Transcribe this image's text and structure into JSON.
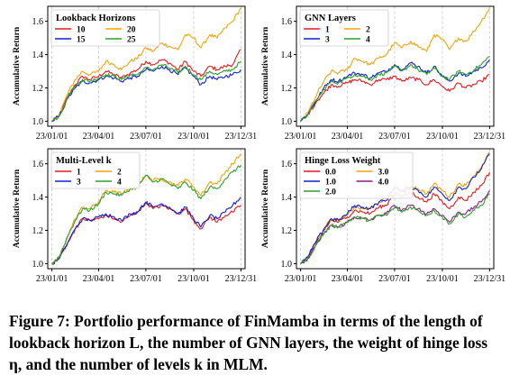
{
  "caption": {
    "label": "Figure 7:",
    "text": "Portfolio performance of FinMamba in terms of the length of lookback horizon L, the number of GNN layers, the weight of hinge loss η, and the number of levels k in MLM."
  },
  "chart_data": [
    {
      "type": "line",
      "ylabel": "Accumulative Return",
      "legend_title": "Lookback Horizons",
      "legend_position": "top-left",
      "legend_columns": 2,
      "x_ticks": [
        "23/01/01",
        "23/04/01",
        "23/07/01",
        "23/10/01",
        "23/12/31"
      ],
      "y_ticks": [
        1.0,
        1.2,
        1.4,
        1.6
      ],
      "ylim": [
        0.97,
        1.69
      ],
      "grid": "vertical dashed at x ticks",
      "x": [
        "23/01/01",
        "23/01/15",
        "23/02/01",
        "23/02/15",
        "23/03/01",
        "23/03/15",
        "23/04/01",
        "23/04/15",
        "23/05/01",
        "23/05/15",
        "23/06/01",
        "23/06/15",
        "23/07/01",
        "23/07/15",
        "23/08/01",
        "23/08/15",
        "23/09/01",
        "23/09/15",
        "23/10/01",
        "23/10/15",
        "23/11/01",
        "23/11/15",
        "23/12/01",
        "23/12/15",
        "23/12/31"
      ],
      "series": [
        {
          "name": "10",
          "color": "#e8191c",
          "values": [
            1.0,
            1.03,
            1.15,
            1.22,
            1.27,
            1.25,
            1.27,
            1.3,
            1.28,
            1.26,
            1.29,
            1.31,
            1.36,
            1.34,
            1.37,
            1.35,
            1.31,
            1.36,
            1.3,
            1.27,
            1.33,
            1.31,
            1.33,
            1.34,
            1.43
          ]
        },
        {
          "name": "20",
          "color": "#f2a20c",
          "values": [
            1.0,
            1.04,
            1.17,
            1.25,
            1.3,
            1.28,
            1.3,
            1.36,
            1.34,
            1.31,
            1.36,
            1.38,
            1.44,
            1.42,
            1.47,
            1.45,
            1.43,
            1.52,
            1.5,
            1.44,
            1.52,
            1.5,
            1.56,
            1.6,
            1.68
          ]
        },
        {
          "name": "15",
          "color": "#1020d0",
          "values": [
            1.0,
            1.03,
            1.14,
            1.2,
            1.24,
            1.23,
            1.25,
            1.27,
            1.26,
            1.24,
            1.26,
            1.27,
            1.31,
            1.3,
            1.33,
            1.31,
            1.28,
            1.32,
            1.27,
            1.22,
            1.27,
            1.25,
            1.27,
            1.28,
            1.31
          ]
        },
        {
          "name": "25",
          "color": "#2ea02c",
          "values": [
            1.0,
            1.03,
            1.15,
            1.21,
            1.25,
            1.24,
            1.26,
            1.28,
            1.27,
            1.25,
            1.28,
            1.28,
            1.32,
            1.31,
            1.34,
            1.32,
            1.29,
            1.33,
            1.28,
            1.25,
            1.3,
            1.28,
            1.3,
            1.31,
            1.36
          ]
        }
      ]
    },
    {
      "type": "line",
      "ylabel": "Accumulative Return",
      "legend_title": "GNN Layers",
      "legend_position": "top-left",
      "legend_columns": 2,
      "x_ticks": [
        "23/01/01",
        "23/04/01",
        "23/07/01",
        "23/10/01",
        "23/12/31"
      ],
      "y_ticks": [
        1.0,
        1.2,
        1.4,
        1.6
      ],
      "ylim": [
        0.97,
        1.69
      ],
      "grid": "vertical dashed at x ticks",
      "x": [
        "23/01/01",
        "23/01/15",
        "23/02/01",
        "23/02/15",
        "23/03/01",
        "23/03/15",
        "23/04/01",
        "23/04/15",
        "23/05/01",
        "23/05/15",
        "23/06/01",
        "23/06/15",
        "23/07/01",
        "23/07/15",
        "23/08/01",
        "23/08/15",
        "23/09/01",
        "23/09/15",
        "23/10/01",
        "23/10/15",
        "23/11/01",
        "23/11/15",
        "23/12/01",
        "23/12/15",
        "23/12/31"
      ],
      "series": [
        {
          "name": "1",
          "color": "#e8191c",
          "values": [
            1.0,
            1.04,
            1.12,
            1.17,
            1.22,
            1.21,
            1.23,
            1.25,
            1.24,
            1.22,
            1.25,
            1.25,
            1.27,
            1.24,
            1.26,
            1.25,
            1.22,
            1.25,
            1.21,
            1.18,
            1.23,
            1.2,
            1.22,
            1.24,
            1.28
          ]
        },
        {
          "name": "2",
          "color": "#f2a20c",
          "values": [
            1.0,
            1.05,
            1.16,
            1.24,
            1.3,
            1.29,
            1.31,
            1.38,
            1.36,
            1.34,
            1.38,
            1.4,
            1.47,
            1.44,
            1.48,
            1.45,
            1.42,
            1.52,
            1.49,
            1.43,
            1.5,
            1.48,
            1.54,
            1.6,
            1.68
          ]
        },
        {
          "name": "3",
          "color": "#1020d0",
          "values": [
            1.0,
            1.04,
            1.13,
            1.2,
            1.25,
            1.24,
            1.27,
            1.29,
            1.28,
            1.26,
            1.29,
            1.3,
            1.34,
            1.31,
            1.35,
            1.33,
            1.29,
            1.33,
            1.27,
            1.24,
            1.29,
            1.27,
            1.3,
            1.32,
            1.37
          ]
        },
        {
          "name": "4",
          "color": "#2ea02c",
          "values": [
            1.0,
            1.04,
            1.13,
            1.19,
            1.24,
            1.23,
            1.26,
            1.28,
            1.27,
            1.25,
            1.28,
            1.29,
            1.33,
            1.3,
            1.34,
            1.31,
            1.28,
            1.32,
            1.27,
            1.25,
            1.3,
            1.28,
            1.31,
            1.34,
            1.39
          ]
        }
      ]
    },
    {
      "type": "line",
      "ylabel": "Accumulative Return",
      "legend_title": "Multi-Level k",
      "legend_position": "top-left",
      "legend_columns": 2,
      "x_ticks": [
        "23/01/01",
        "23/04/01",
        "23/07/01",
        "23/10/01",
        "23/12/31"
      ],
      "y_ticks": [
        1.0,
        1.2,
        1.4,
        1.6
      ],
      "ylim": [
        0.97,
        1.69
      ],
      "grid": "vertical dashed at x ticks",
      "x": [
        "23/01/01",
        "23/01/15",
        "23/02/01",
        "23/02/15",
        "23/03/01",
        "23/03/15",
        "23/04/01",
        "23/04/15",
        "23/05/01",
        "23/05/15",
        "23/06/01",
        "23/06/15",
        "23/07/01",
        "23/07/15",
        "23/08/01",
        "23/08/15",
        "23/09/01",
        "23/09/15",
        "23/10/01",
        "23/10/15",
        "23/11/01",
        "23/11/15",
        "23/12/01",
        "23/12/15",
        "23/12/31"
      ],
      "series": [
        {
          "name": "1",
          "color": "#e8191c",
          "values": [
            1.0,
            1.03,
            1.13,
            1.21,
            1.27,
            1.26,
            1.27,
            1.29,
            1.27,
            1.25,
            1.29,
            1.31,
            1.37,
            1.33,
            1.35,
            1.33,
            1.3,
            1.33,
            1.26,
            1.21,
            1.28,
            1.25,
            1.29,
            1.31,
            1.35
          ]
        },
        {
          "name": "2",
          "color": "#f2a20c",
          "values": [
            1.0,
            1.04,
            1.17,
            1.27,
            1.34,
            1.33,
            1.37,
            1.44,
            1.43,
            1.42,
            1.45,
            1.47,
            1.53,
            1.5,
            1.51,
            1.49,
            1.47,
            1.51,
            1.46,
            1.41,
            1.49,
            1.48,
            1.55,
            1.6,
            1.66
          ]
        },
        {
          "name": "3",
          "color": "#1020d0",
          "values": [
            1.0,
            1.03,
            1.13,
            1.21,
            1.27,
            1.26,
            1.28,
            1.3,
            1.28,
            1.26,
            1.3,
            1.31,
            1.37,
            1.34,
            1.36,
            1.34,
            1.3,
            1.34,
            1.27,
            1.22,
            1.29,
            1.27,
            1.31,
            1.35,
            1.4
          ]
        },
        {
          "name": "4",
          "color": "#2ea02c",
          "values": [
            1.0,
            1.04,
            1.17,
            1.26,
            1.33,
            1.32,
            1.36,
            1.43,
            1.42,
            1.41,
            1.45,
            1.46,
            1.53,
            1.49,
            1.51,
            1.48,
            1.45,
            1.49,
            1.44,
            1.39,
            1.46,
            1.45,
            1.51,
            1.55,
            1.59
          ]
        }
      ]
    },
    {
      "type": "line",
      "ylabel": "Accumulative Return",
      "legend_title": "Hinge Loss Weight",
      "legend_position": "top-left",
      "legend_columns": 2,
      "x_ticks": [
        "23/01/01",
        "23/04/01",
        "23/07/01",
        "23/10/01",
        "23/12/31"
      ],
      "y_ticks": [
        1.0,
        1.2,
        1.4,
        1.6
      ],
      "ylim": [
        0.97,
        1.69
      ],
      "grid": "vertical dashed at x ticks",
      "x": [
        "23/01/01",
        "23/01/15",
        "23/02/01",
        "23/02/15",
        "23/03/01",
        "23/03/15",
        "23/04/01",
        "23/04/15",
        "23/05/01",
        "23/05/15",
        "23/06/01",
        "23/06/15",
        "23/07/01",
        "23/07/15",
        "23/08/01",
        "23/08/15",
        "23/09/01",
        "23/09/15",
        "23/10/01",
        "23/10/15",
        "23/11/01",
        "23/11/15",
        "23/12/01",
        "23/12/15",
        "23/12/31"
      ],
      "series": [
        {
          "name": "0.0",
          "color": "#e8191c",
          "values": [
            1.0,
            1.04,
            1.13,
            1.2,
            1.26,
            1.25,
            1.28,
            1.32,
            1.31,
            1.3,
            1.34,
            1.35,
            1.43,
            1.4,
            1.43,
            1.4,
            1.37,
            1.42,
            1.37,
            1.33,
            1.4,
            1.38,
            1.43,
            1.47,
            1.55
          ]
        },
        {
          "name": "3.0",
          "color": "#f2a20c",
          "values": [
            1.0,
            1.04,
            1.14,
            1.21,
            1.27,
            1.26,
            1.29,
            1.34,
            1.33,
            1.33,
            1.37,
            1.39,
            1.47,
            1.44,
            1.47,
            1.45,
            1.42,
            1.48,
            1.44,
            1.4,
            1.48,
            1.47,
            1.53,
            1.58,
            1.67
          ]
        },
        {
          "name": "1.0",
          "color": "#1020d0",
          "values": [
            1.0,
            1.04,
            1.14,
            1.21,
            1.27,
            1.26,
            1.3,
            1.35,
            1.34,
            1.33,
            1.37,
            1.38,
            1.46,
            1.43,
            1.46,
            1.44,
            1.4,
            1.46,
            1.42,
            1.38,
            1.46,
            1.45,
            1.52,
            1.57,
            1.66
          ]
        },
        {
          "name": "4.0",
          "color": "#8a1a8c",
          "values": [
            1.0,
            1.03,
            1.12,
            1.18,
            1.23,
            1.22,
            1.25,
            1.28,
            1.27,
            1.26,
            1.29,
            1.3,
            1.35,
            1.32,
            1.35,
            1.33,
            1.3,
            1.33,
            1.29,
            1.25,
            1.31,
            1.3,
            1.34,
            1.37,
            1.44
          ]
        },
        {
          "name": "2.0",
          "color": "#2ea02c",
          "values": [
            1.0,
            1.03,
            1.12,
            1.18,
            1.23,
            1.22,
            1.25,
            1.28,
            1.27,
            1.26,
            1.29,
            1.29,
            1.34,
            1.31,
            1.34,
            1.32,
            1.29,
            1.32,
            1.28,
            1.24,
            1.3,
            1.28,
            1.32,
            1.35,
            1.42
          ]
        }
      ]
    }
  ]
}
